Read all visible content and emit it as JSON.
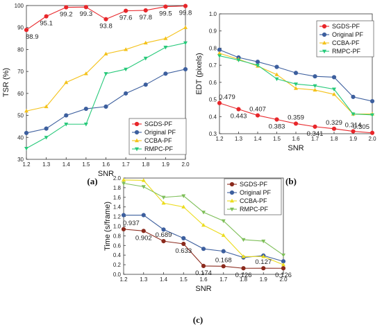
{
  "chart_data": [
    {
      "type": "line",
      "panel_label": "(a)",
      "xlabel": "SNR",
      "ylabel": "TSR (%)",
      "x": [
        1.2,
        1.3,
        1.4,
        1.5,
        1.6,
        1.7,
        1.8,
        1.9,
        2.0
      ],
      "xticks": [
        "1.2",
        "1.3",
        "1.4",
        "1.5",
        "1.6",
        "1.7",
        "1.8",
        "1.9",
        "2.0"
      ],
      "yticks": [
        "30",
        "40",
        "50",
        "60",
        "70",
        "80",
        "90",
        "100"
      ],
      "xlim": [
        1.2,
        2.0
      ],
      "ylim": [
        30,
        100
      ],
      "grid": false,
      "legend_position": "bottom-right",
      "series": [
        {
          "name": "SGDS-PF",
          "color": "#e8262a",
          "marker": "circle",
          "values": [
            88.9,
            95.1,
            99.2,
            99.3,
            93.8,
            97.6,
            97.8,
            99.5,
            99.8
          ]
        },
        {
          "name": "Original PF",
          "color": "#3d5f9e",
          "marker": "circle",
          "values": [
            42,
            44,
            50,
            53,
            54,
            60,
            64,
            69,
            71
          ]
        },
        {
          "name": "CCBA-PF",
          "color": "#f4c21a",
          "marker": "triangle-up",
          "values": [
            52,
            54,
            65,
            69,
            78,
            80,
            83,
            85,
            90
          ]
        },
        {
          "name": "RMPC-PF",
          "color": "#27c97a",
          "marker": "triangle-down",
          "values": [
            35,
            40,
            46,
            46,
            69,
            71,
            76,
            81,
            83
          ]
        }
      ],
      "data_labels": [
        {
          "series": 0,
          "index": 0,
          "text": "88.9",
          "place": "below"
        },
        {
          "series": 0,
          "index": 1,
          "text": "95.1",
          "place": "below"
        },
        {
          "series": 0,
          "index": 2,
          "text": "99.2",
          "place": "below"
        },
        {
          "series": 0,
          "index": 3,
          "text": "99.3",
          "place": "below"
        },
        {
          "series": 0,
          "index": 4,
          "text": "93.8",
          "place": "below"
        },
        {
          "series": 0,
          "index": 5,
          "text": "97.6",
          "place": "below"
        },
        {
          "series": 0,
          "index": 6,
          "text": "97.8",
          "place": "below"
        },
        {
          "series": 0,
          "index": 7,
          "text": "99.5",
          "place": "below"
        },
        {
          "series": 0,
          "index": 8,
          "text": "99.8",
          "place": "below"
        }
      ]
    },
    {
      "type": "line",
      "panel_label": "(b)",
      "xlabel": "SNR",
      "ylabel": "EDT (pixels)",
      "x": [
        1.2,
        1.3,
        1.4,
        1.5,
        1.6,
        1.7,
        1.8,
        1.9,
        2.0
      ],
      "xticks": [
        "1.2",
        "1.3",
        "1.4",
        "1.5",
        "1.6",
        "1.7",
        "1.8",
        "1.9",
        "2.0"
      ],
      "yticks": [
        "0.3",
        "0.4",
        "0.5",
        "0.6",
        "0.7",
        "0.8",
        "0.9",
        "1.0"
      ],
      "xlim": [
        1.2,
        2.0
      ],
      "ylim": [
        0.3,
        1.0
      ],
      "grid": false,
      "legend_position": "top-right",
      "series": [
        {
          "name": "SGDS-PF",
          "color": "#e8262a",
          "marker": "circle",
          "values": [
            0.479,
            0.443,
            0.407,
            0.383,
            0.359,
            0.341,
            0.329,
            0.314,
            0.305
          ]
        },
        {
          "name": "Original PF",
          "color": "#3d5f9e",
          "marker": "circle",
          "values": [
            0.79,
            0.745,
            0.72,
            0.69,
            0.655,
            0.635,
            0.63,
            0.515,
            0.49
          ]
        },
        {
          "name": "CCBA-PF",
          "color": "#f4c21a",
          "marker": "triangle-up",
          "values": [
            0.77,
            0.735,
            0.695,
            0.645,
            0.565,
            0.555,
            0.53,
            0.415,
            0.415
          ]
        },
        {
          "name": "RMPC-PF",
          "color": "#27c97a",
          "marker": "triangle-down",
          "values": [
            0.755,
            0.73,
            0.7,
            0.62,
            0.59,
            0.58,
            0.56,
            0.415,
            0.41
          ]
        }
      ],
      "data_labels": [
        {
          "series": 0,
          "index": 0,
          "text": "0.479",
          "place": "above"
        },
        {
          "series": 0,
          "index": 1,
          "text": "0.443",
          "place": "below"
        },
        {
          "series": 0,
          "index": 2,
          "text": "0.407",
          "place": "above"
        },
        {
          "series": 0,
          "index": 3,
          "text": "0.383",
          "place": "below"
        },
        {
          "series": 0,
          "index": 4,
          "text": "0.359",
          "place": "above"
        },
        {
          "series": 0,
          "index": 5,
          "text": "0.341",
          "place": "below"
        },
        {
          "series": 0,
          "index": 6,
          "text": "0.329",
          "place": "above"
        },
        {
          "series": 0,
          "index": 7,
          "text": "0.314",
          "place": "above"
        },
        {
          "series": 0,
          "index": 8,
          "text": "0.305",
          "place": "above-left"
        }
      ]
    },
    {
      "type": "line",
      "panel_label": "(c)",
      "xlabel": "SNR",
      "ylabel": "Time (s/frame)",
      "x": [
        1.2,
        1.3,
        1.4,
        1.5,
        1.6,
        1.7,
        1.8,
        1.9,
        2.0
      ],
      "xticks": [
        "1.2",
        "1.3",
        "1.4",
        "1.5",
        "1.6",
        "1.7",
        "1.8",
        "1.9",
        "2.0"
      ],
      "yticks": [
        "0.0",
        "0.2",
        "0.4",
        "0.6",
        "0.8",
        "1.0",
        "1.2",
        "1.4",
        "1.6",
        "1.8",
        "2.0"
      ],
      "xlim": [
        1.2,
        2.0
      ],
      "ylim": [
        0.0,
        2.0
      ],
      "grid": false,
      "legend_position": "top-right",
      "series": [
        {
          "name": "SGDS-PF",
          "color": "#8b2a1d",
          "marker": "circle",
          "values": [
            0.937,
            0.902,
            0.689,
            0.633,
            0.174,
            0.168,
            0.126,
            0.127,
            0.126
          ]
        },
        {
          "name": "Original PF",
          "color": "#3d5f9e",
          "marker": "circle",
          "values": [
            1.23,
            1.23,
            0.93,
            0.75,
            0.53,
            0.48,
            0.35,
            0.39,
            0.27
          ]
        },
        {
          "name": "CCBA-PF",
          "color": "#ecdc1f",
          "marker": "triangle-up",
          "values": [
            1.96,
            1.95,
            1.48,
            1.4,
            1.02,
            0.81,
            0.37,
            0.37,
            0.2
          ]
        },
        {
          "name": "RMPC-PF",
          "color": "#7fbf5a",
          "marker": "triangle-down",
          "values": [
            1.89,
            1.82,
            1.6,
            1.63,
            1.29,
            1.11,
            0.72,
            0.69,
            0.4
          ]
        }
      ],
      "data_labels": [
        {
          "series": 0,
          "index": 0,
          "text": "0.937",
          "place": "above"
        },
        {
          "series": 0,
          "index": 1,
          "text": "0.902",
          "place": "below"
        },
        {
          "series": 0,
          "index": 2,
          "text": "0.689",
          "place": "above"
        },
        {
          "series": 0,
          "index": 3,
          "text": "0.633",
          "place": "below"
        },
        {
          "series": 0,
          "index": 4,
          "text": "0.174",
          "place": "below"
        },
        {
          "series": 0,
          "index": 5,
          "text": "0.168",
          "place": "above"
        },
        {
          "series": 0,
          "index": 6,
          "text": "0.126",
          "place": "below"
        },
        {
          "series": 0,
          "index": 7,
          "text": "0.127",
          "place": "above"
        },
        {
          "series": 0,
          "index": 8,
          "text": "0.126",
          "place": "below"
        }
      ]
    }
  ]
}
